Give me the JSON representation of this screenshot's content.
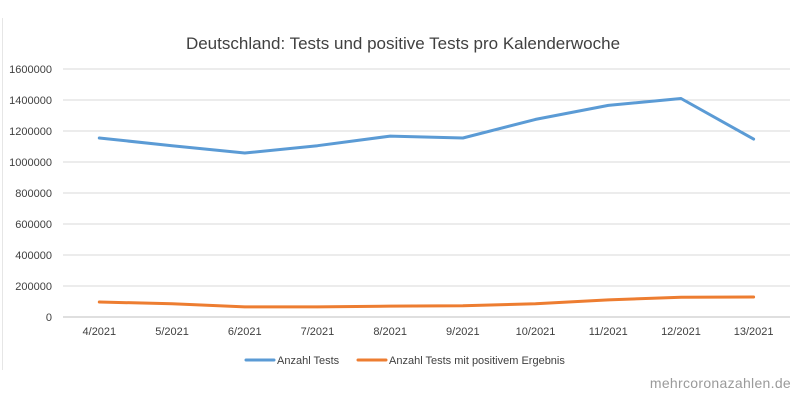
{
  "chart_data": {
    "type": "line",
    "title": "Deutschland: Tests und positive Tests pro Kalenderwoche",
    "xlabel": "",
    "ylabel": "",
    "categories": [
      "4/2021",
      "5/2021",
      "6/2021",
      "7/2021",
      "8/2021",
      "9/2021",
      "10/2021",
      "11/2021",
      "12/2021",
      "13/2021"
    ],
    "yticks": [
      "0",
      "200000",
      "400000",
      "600000",
      "800000",
      "1000000",
      "1200000",
      "1400000",
      "1600000"
    ],
    "ylim": [
      0,
      1600000
    ],
    "grid": true,
    "legend_position": "bottom",
    "series": [
      {
        "name": "Anzahl Tests",
        "color": "#5b9bd5",
        "values": [
          1155000,
          1105000,
          1058000,
          1105000,
          1167000,
          1155000,
          1275000,
          1365000,
          1410000,
          1148000
        ]
      },
      {
        "name": "Anzahl Tests mit positivem Ergebnis",
        "color": "#ed7d31",
        "values": [
          97000,
          85000,
          65000,
          65000,
          70000,
          72000,
          85000,
          110000,
          128000,
          129000
        ]
      }
    ]
  },
  "watermark": "mehrcoronazahlen.de"
}
